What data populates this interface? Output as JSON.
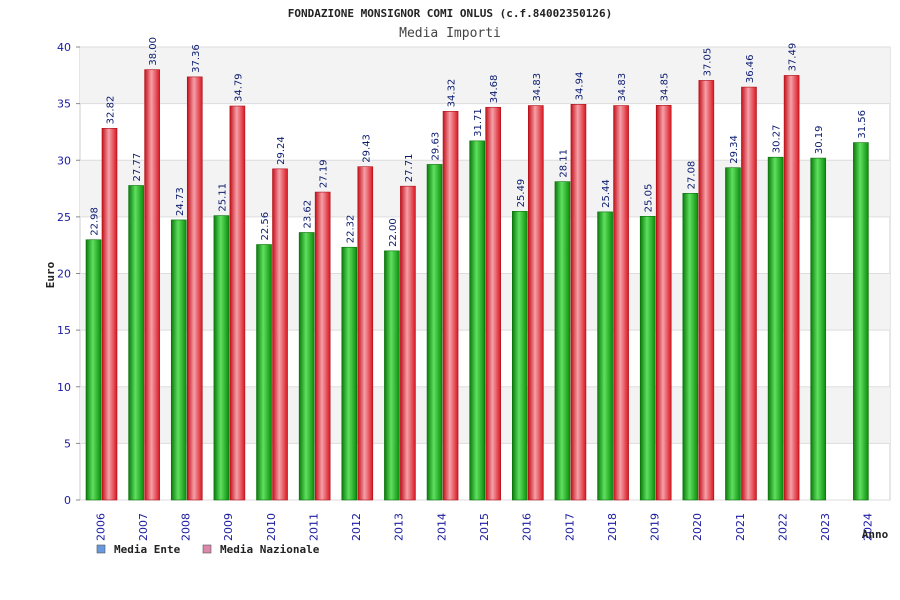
{
  "chart_data": {
    "type": "bar",
    "title": "FONDAZIONE MONSIGNOR COMI ONLUS (c.f.84002350126)",
    "subtitle": "Media Importi",
    "ylabel": "Euro",
    "xlabel": "Anno",
    "ylim": [
      0,
      40
    ],
    "yticks": [
      0,
      5,
      10,
      15,
      20,
      25,
      30,
      35,
      40
    ],
    "grid": true,
    "legend_position": "bottom-left",
    "categories": [
      "2006",
      "2007",
      "2008",
      "2009",
      "2010",
      "2011",
      "2012",
      "2013",
      "2014",
      "2015",
      "2016",
      "2017",
      "2018",
      "2019",
      "2020",
      "2021",
      "2022",
      "2023",
      "2024"
    ],
    "series": [
      {
        "name": "Media Ente",
        "color": "#1fae1f",
        "legend_color": "#6699dd",
        "values": [
          22.98,
          27.77,
          24.73,
          25.11,
          22.56,
          23.62,
          22.32,
          22.0,
          29.63,
          31.71,
          25.49,
          28.11,
          25.44,
          25.05,
          27.08,
          29.34,
          30.27,
          30.19,
          31.56
        ],
        "labels": [
          "22.98",
          "27.77",
          "24.73",
          "25.11",
          "22.56",
          "23.62",
          "22.32",
          "22.00",
          "29.63",
          "31.71",
          "25.49",
          "28.11",
          "25.44",
          "25.05",
          "27.08",
          "29.34",
          "30.27",
          "30.19",
          "31.56"
        ]
      },
      {
        "name": "Media Nazionale",
        "color": "#e8202a",
        "legend_color": "#dd88aa",
        "values": [
          32.82,
          38.0,
          37.36,
          34.79,
          29.24,
          27.19,
          29.43,
          27.71,
          34.32,
          34.68,
          34.83,
          34.94,
          34.83,
          34.85,
          37.05,
          36.46,
          37.49,
          null,
          null
        ],
        "labels": [
          "32.82",
          "38.00",
          "37.36",
          "34.79",
          "29.24",
          "27.19",
          "29.43",
          "27.71",
          "34.32",
          "34.68",
          "34.83",
          "34.94",
          "34.83",
          "34.85",
          "37.05",
          "36.46",
          "37.49",
          "",
          ""
        ]
      }
    ]
  }
}
